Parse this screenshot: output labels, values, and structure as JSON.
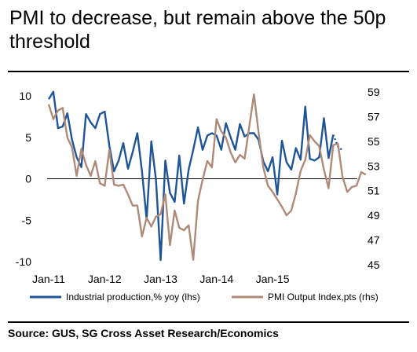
{
  "title": "PMI to decrease, but remain above the 50p threshold",
  "source": "Source: GUS, SG Cross Asset Research/Economics",
  "chart_data": {
    "type": "line",
    "x_tick_labels": [
      "Jan-11",
      "Jan-12",
      "Jan-13",
      "Jan-14",
      "Jan-15"
    ],
    "x_start": "2011-01",
    "y_left": {
      "ticks": [
        -10,
        -5,
        0,
        5,
        10
      ],
      "range": [
        -10,
        10
      ]
    },
    "y_right": {
      "ticks": [
        45,
        47,
        49,
        51,
        53,
        55,
        57,
        59
      ],
      "range": [
        45,
        59
      ]
    },
    "grid": false,
    "legend_position": "bottom",
    "series": [
      {
        "name": "Industrial production,% yoy (lhs)",
        "axis": "left",
        "color": "#1f5597",
        "projected_tail_points": 2,
        "values": [
          9.6,
          10.5,
          6.1,
          6.3,
          7.9,
          4.7,
          2.6,
          1.4,
          7.8,
          6.8,
          6.1,
          7.8,
          8.1,
          4.0,
          0.9,
          2.2,
          4.3,
          1.2,
          3.2,
          5.5,
          0.9,
          -4.9,
          4.5,
          -0.1,
          -9.8,
          2.2,
          -1.7,
          -2.8,
          2.8,
          -3.0,
          1.1,
          3.5,
          6.2,
          3.5,
          5.2,
          5.5,
          5.2,
          3.5,
          6.7,
          5.0,
          3.5,
          6.6,
          5.1,
          5.5,
          5.5,
          4.7,
          2.1,
          0.9,
          2.6,
          -1.9,
          4.6,
          2.0,
          1.1,
          3.7,
          2.3,
          8.7,
          2.4,
          2.2,
          2.6,
          7.3,
          2.5,
          5.3,
          3.9,
          3.4
        ]
      },
      {
        "name": "PMI Output Index,pts (rhs)",
        "axis": "right",
        "color": "#b08a78",
        "values": [
          58.0,
          56.8,
          57.5,
          57.7,
          55.3,
          54.5,
          52.2,
          54.4,
          53.1,
          52.2,
          53.4,
          51.6,
          51.4,
          54.3,
          51.5,
          51.4,
          51.5,
          50.7,
          49.8,
          49.8,
          47.3,
          48.8,
          48.1,
          48.9,
          49.1,
          50.7,
          46.6,
          49.4,
          48.0,
          47.8,
          48.2,
          45.4,
          50.2,
          51.9,
          53.4,
          52.9,
          56.8,
          55.8,
          55.3,
          54.1,
          53.3,
          53.9,
          53.6,
          56.2,
          58.8,
          55.7,
          52.9,
          51.4,
          50.9,
          50.3,
          49.7,
          49.0,
          49.4,
          50.8,
          52.6,
          53.5,
          55.5,
          55.0,
          54.6,
          52.7,
          51.2,
          54.7,
          54.8,
          52.1,
          50.9,
          51.3,
          51.4,
          52.5,
          52.3
        ]
      }
    ]
  }
}
